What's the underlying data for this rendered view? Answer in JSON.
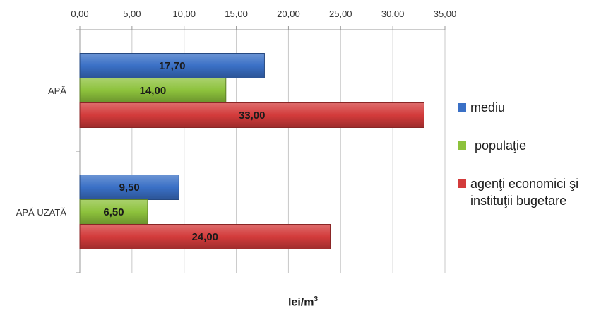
{
  "chart_data": {
    "type": "bar",
    "orientation": "horizontal",
    "categories": [
      "APĂ",
      "APĂ UZATĂ"
    ],
    "series": [
      {
        "name": "mediu",
        "values": [
          17.7,
          9.5
        ],
        "value_labels": [
          "17,70",
          "9,50"
        ],
        "color": "#3a70c6"
      },
      {
        "name": "populaţie",
        "values": [
          14.0,
          6.5
        ],
        "value_labels": [
          "14,00",
          "6,50"
        ],
        "color": "#8dc23c"
      },
      {
        "name": "agenţi economici şi instituţii bugetare",
        "values": [
          33.0,
          24.0
        ],
        "value_labels": [
          "33,00",
          "24,00"
        ],
        "color": "#d33b3b"
      }
    ],
    "x_ticks": [
      0,
      5,
      10,
      15,
      20,
      25,
      30,
      35
    ],
    "x_tick_labels": [
      "0,00",
      "5,00",
      "10,00",
      "15,00",
      "20,00",
      "25,00",
      "30,00",
      "35,00"
    ],
    "xlim": [
      0,
      35
    ],
    "xaxis_position": "top",
    "xlabel": "lei/m3",
    "xlabel_base": "lei/m",
    "xlabel_superscript": "3",
    "legend": {
      "position": "right",
      "items": [
        {
          "label": "mediu",
          "color": "#3a70c6"
        },
        {
          "label": "populaţie",
          "color": "#8dc23c"
        },
        {
          "label_lines": [
            "agenţi economici şi",
            "instituţii bugetare"
          ],
          "color": "#d33b3b"
        }
      ]
    },
    "grid": true
  }
}
